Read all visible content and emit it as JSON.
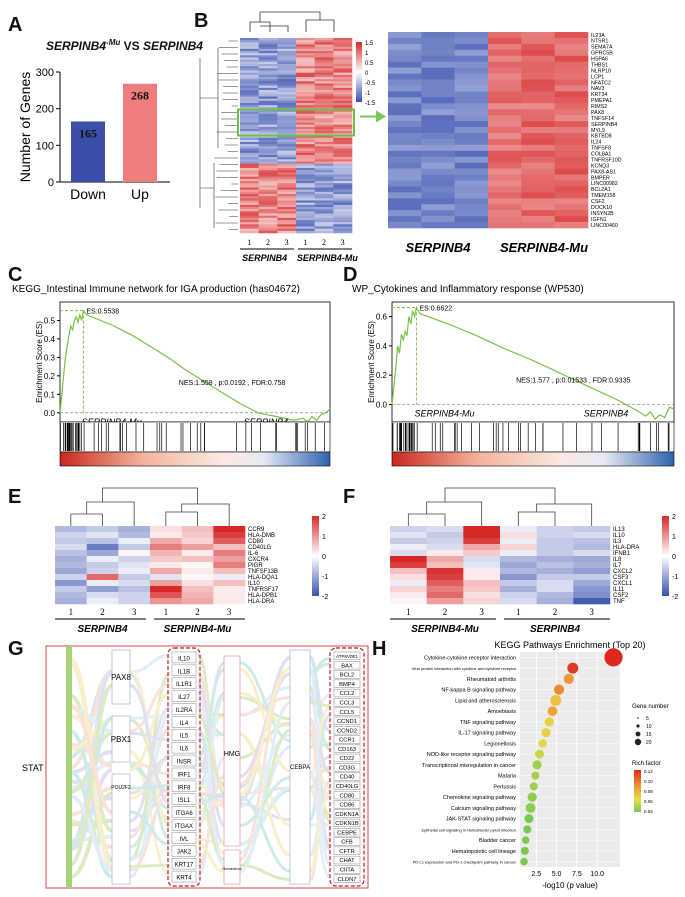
{
  "panels": {
    "A": {
      "label": "A",
      "title_left": "SERPINB4",
      "title_sup": "-Mu",
      "title_mid": " VS ",
      "title_right": "SERPINB4"
    },
    "B": {
      "label": "B"
    },
    "C": {
      "label": "C"
    },
    "D": {
      "label": "D"
    },
    "E": {
      "label": "E"
    },
    "F": {
      "label": "F"
    },
    "G": {
      "label": "G"
    },
    "H": {
      "label": "H"
    }
  },
  "chart_data": [
    {
      "id": "A",
      "type": "bar",
      "categories": [
        "Down",
        "Up"
      ],
      "values": [
        165,
        268
      ],
      "data_labels": [
        "165",
        "268"
      ],
      "ylabel": "Number of Genes",
      "ylim": [
        0,
        300
      ],
      "yticks": [
        "0",
        "100",
        "200",
        "300"
      ],
      "colors": [
        "#3a4fa8",
        "#ee7d7b"
      ]
    },
    {
      "id": "B",
      "type": "heatmap",
      "groups": [
        "SERPINB4",
        "SERPINB4-Mu"
      ],
      "sample_ticks": [
        "1",
        "2",
        "3",
        "1",
        "2",
        "3"
      ],
      "colorbar_ticks": [
        "1.5",
        "1",
        "0.5",
        "0",
        "-0.5",
        "-1",
        "-1.5"
      ],
      "zoom_genes": [
        "IL23A",
        "NTSR1",
        "SEMA7A",
        "GPRC5B",
        "HSPA6",
        "THBS1",
        "NLRP10",
        "LCP1",
        "NFATC2",
        "NAV3",
        "KRT34",
        "PMEPA1",
        "RIMS2",
        "PAX8",
        "TNFSF14",
        "SERPINB4",
        "MYL9",
        "KBTBD8",
        "IL24",
        "TNFSF8",
        "COL8A1",
        "TNFRSF10D",
        "KCNQ3",
        "PAX8-AS1",
        "BMPER",
        "LINC00982",
        "BCL2A1",
        "TMEM158",
        "CSF2",
        "DOCK10",
        "INSYN2B",
        "IGFN1",
        "LINC00460"
      ],
      "zoom_groups": [
        "SERPINB4",
        "SERPINB4-Mu"
      ]
    },
    {
      "id": "C",
      "type": "line",
      "title": "KEGG_Intestinal Immune network for IGA production (has04672)",
      "ylabel": "Enrichment Score (ES)",
      "yticks": [
        "0.0",
        "0.1",
        "0.2",
        "0.3",
        "0.4",
        "0.5"
      ],
      "ylim": [
        -0.05,
        0.6
      ],
      "es_label": "ES:0.5538",
      "stats": "NES:1.558 , p:0.0192 , FDR:0.758",
      "left_group": "SERPINB4-Mu",
      "right_group": "SERPINB4",
      "x": [
        0,
        3,
        6,
        8,
        10,
        12,
        14,
        16,
        18,
        20,
        22,
        24,
        26,
        28,
        30,
        60,
        80,
        100,
        120,
        140,
        160,
        180,
        200,
        220,
        240,
        260,
        270,
        275,
        280,
        285,
        290,
        295,
        300
      ],
      "y": [
        0,
        0.15,
        0.3,
        0.36,
        0.42,
        0.47,
        0.45,
        0.5,
        0.52,
        0.49,
        0.53,
        0.5,
        0.553,
        0.54,
        0.53,
        0.47,
        0.42,
        0.36,
        0.3,
        0.23,
        0.17,
        0.11,
        0.05,
        0.0,
        -0.02,
        -0.04,
        -0.03,
        -0.05,
        -0.02,
        -0.04,
        -0.01,
        0.0,
        0.02
      ]
    },
    {
      "id": "D",
      "type": "line",
      "title": "WP_Cytokines and Inflammatory response (WP530)",
      "ylabel": "Enrichment Score (ES)",
      "yticks": [
        "0.0",
        "0.2",
        "0.4",
        "0.6"
      ],
      "ylim": [
        -0.12,
        0.7
      ],
      "es_label": "ES:0.6622",
      "stats": "NES:1.577 , p:0.01533 , FDR:0.9335",
      "left_group": "SERPINB4-Mu",
      "right_group": "SERPINB4",
      "x": [
        0,
        4,
        6,
        8,
        10,
        12,
        14,
        16,
        18,
        20,
        22,
        24,
        26,
        28,
        30,
        60,
        90,
        120,
        150,
        180,
        210,
        240,
        260,
        270,
        275,
        280,
        285,
        290,
        295,
        300
      ],
      "y": [
        0,
        0.25,
        0.4,
        0.35,
        0.48,
        0.44,
        0.5,
        0.47,
        0.6,
        0.55,
        0.64,
        0.6,
        0.662,
        0.64,
        0.62,
        0.55,
        0.47,
        0.38,
        0.3,
        0.21,
        0.12,
        0.03,
        -0.04,
        -0.08,
        -0.05,
        -0.1,
        -0.07,
        -0.09,
        -0.02,
        -0.03
      ]
    },
    {
      "id": "E",
      "type": "heatmap",
      "genes": [
        "CCR9",
        "HLA-DMB",
        "CD80",
        "CD40LG",
        "IL-6",
        "CXCR4",
        "PIGR",
        "TNFSF13B",
        "HLA-DQA1",
        "IL10",
        "TNFRSF17",
        "HLA-DPB1",
        "HLA-DRA"
      ],
      "samples": [
        "1",
        "2",
        "3",
        "1",
        "2",
        "3"
      ],
      "groups": [
        "SERPINB4",
        "SERPINB4-Mu"
      ],
      "colorbar_ticks": [
        "2",
        "1",
        "0",
        "-1",
        "-2"
      ],
      "values": [
        [
          -0.8,
          -0.6,
          -0.9,
          0.3,
          0.6,
          2.0
        ],
        [
          -0.5,
          -0.3,
          -0.8,
          0.2,
          0.5,
          1.8
        ],
        [
          -0.6,
          -0.7,
          -0.2,
          0.8,
          0.4,
          1.5
        ],
        [
          -0.4,
          -1.5,
          -0.6,
          1.2,
          0.9,
          0.6
        ],
        [
          -0.7,
          -1.0,
          0.1,
          0.7,
          0.2,
          1.2
        ],
        [
          -0.9,
          -0.2,
          -0.5,
          0.5,
          0.6,
          0.9
        ],
        [
          -0.8,
          -0.6,
          -0.3,
          0.2,
          0.1,
          1.2
        ],
        [
          -1.0,
          -0.5,
          -0.2,
          0.8,
          0.2,
          0.6
        ],
        [
          -0.5,
          1.4,
          -0.6,
          -0.3,
          0.1,
          -0.2
        ],
        [
          -1.2,
          -0.2,
          -0.4,
          0.9,
          0.3,
          0.6
        ],
        [
          -0.6,
          -1.1,
          -0.7,
          2.0,
          0.6,
          0.2
        ],
        [
          -0.8,
          -0.4,
          -0.5,
          1.6,
          0.7,
          0.2
        ],
        [
          -0.9,
          -0.2,
          -0.5,
          1.0,
          0.8,
          0.2
        ]
      ]
    },
    {
      "id": "F",
      "type": "heatmap",
      "genes": [
        "IL13",
        "IL10",
        "IL3",
        "HLA-DRA",
        "IFNB1",
        "IL8",
        "IL7",
        "CXCL2",
        "CSF3",
        "CXCL1",
        "IL11",
        "CSF2",
        "TNF"
      ],
      "samples": [
        "1",
        "2",
        "3",
        "1",
        "2",
        "3"
      ],
      "groups": [
        "SERPINB4-Mu",
        "SERPINB4"
      ],
      "colorbar_ticks": [
        "2",
        "1",
        "0",
        "-1",
        "-2"
      ],
      "values": [
        [
          -0.5,
          -0.4,
          2.0,
          -0.2,
          -0.5,
          -0.6
        ],
        [
          -0.3,
          -0.6,
          2.0,
          0.3,
          -0.5,
          -0.4
        ],
        [
          -0.6,
          -0.5,
          1.8,
          -0.2,
          -0.6,
          -0.7
        ],
        [
          -0.2,
          -0.4,
          0.8,
          0.4,
          -0.6,
          -0.8
        ],
        [
          -0.4,
          0.2,
          0.5,
          -0.2,
          -0.6,
          -0.4
        ],
        [
          2.0,
          0.8,
          -0.4,
          -0.8,
          -0.9,
          -1.0
        ],
        [
          1.8,
          0.6,
          -0.3,
          -1.0,
          -0.7,
          -0.9
        ],
        [
          0.6,
          1.9,
          0.2,
          -0.8,
          -0.9,
          -1.1
        ],
        [
          0.3,
          1.8,
          0.2,
          -1.2,
          -0.6,
          -0.6
        ],
        [
          -0.2,
          1.5,
          0.6,
          -0.6,
          -0.4,
          -1.0
        ],
        [
          0.4,
          1.2,
          0.5,
          -0.9,
          -0.4,
          -1.2
        ],
        [
          0.2,
          1.4,
          0.3,
          -0.5,
          -0.8,
          -1.3
        ],
        [
          0.1,
          0.9,
          0.4,
          -0.4,
          -0.9,
          -1.9
        ]
      ]
    },
    {
      "id": "H",
      "type": "scatter",
      "title": "KEGG Pathways Enrichment (Top 20)",
      "xlabel": "-log10 (p value)",
      "xticks": [
        2.5,
        5.0,
        7.5,
        10.0
      ],
      "xlim": [
        0.5,
        12.8
      ],
      "categories": [
        "Cytokine-cytokine receptor interaction",
        "Viral protein interaction with cytokine and cytokine receptor",
        "Rheumatoid arthritis",
        "NF-kappa B signaling pathway",
        "Lipid and atherosclerosis",
        "Amoebiasis",
        "TNF signaling pathway",
        "IL-17 signaling pathway",
        "Legionellosis",
        "NOD-like receptor signaling pathway",
        "Transcriptional misregulation in cancer",
        "Malaria",
        "Pertussis",
        "Chemokine signaling pathway",
        "Calcium signaling pathway",
        "JAK-STAT signaling pathway",
        "Epithelial cell signaling in Helicobacter pylori infection",
        "Bladder cancer",
        "Hematopoietic cell lineage",
        "PD-L1 expression and PD-1 checkpoint pathway in cancer"
      ],
      "x": [
        12.0,
        7.0,
        6.5,
        5.3,
        4.9,
        4.5,
        4.1,
        3.7,
        3.3,
        2.9,
        2.6,
        2.4,
        2.2,
        2.0,
        1.8,
        1.6,
        1.4,
        1.2,
        1.1,
        1.0
      ],
      "gene_number": [
        90,
        25,
        20,
        20,
        25,
        18,
        15,
        15,
        12,
        14,
        15,
        10,
        10,
        15,
        18,
        14,
        10,
        8,
        10,
        8
      ],
      "rich_factor": [
        0.12,
        0.115,
        0.09,
        0.095,
        0.075,
        0.085,
        0.07,
        0.07,
        0.065,
        0.06,
        0.05,
        0.05,
        0.05,
        0.045,
        0.045,
        0.04,
        0.04,
        0.035,
        0.04,
        0.035
      ],
      "legend_size_title": "Gene number",
      "legend_size_ticks": [
        "5",
        "10",
        "15",
        "20"
      ],
      "legend_color_title": "Rich factor",
      "legend_color_ticks": [
        "0.12",
        "0.10",
        "0.08",
        "0.06",
        "0.04"
      ]
    }
  ],
  "sankey": {
    "left_node": "STAT",
    "tf_nodes": [
      "PAX8",
      "PBX1",
      "POU2F2"
    ],
    "left_genes": [
      "IL10",
      "IL1B",
      "IL1R1",
      "IL27",
      "IL2RA",
      "IL4",
      "IL5",
      "IL6",
      "INSR",
      "IRF1",
      "IRF8",
      "ISL1",
      "ITGA6",
      "ITGAX",
      "IVL",
      "JAK2",
      "KRT17",
      "KRT4"
    ],
    "mid_nodes": [
      "HMG",
      "Homeobox"
    ],
    "right_node": "CEBPA",
    "right_genes": [
      "ATP6V0E1",
      "BAX",
      "BCL2",
      "BMP4",
      "CCL2",
      "CCL3",
      "CCL5",
      "CCND1",
      "CCND2",
      "CCR1",
      "CD163",
      "CD22",
      "CD3G",
      "CD40",
      "CD40LG",
      "CD80",
      "CD86",
      "CDKN1A",
      "CDKN1B",
      "CEBPE",
      "CFB",
      "CFTR",
      "CHAT",
      "CIITA",
      "CLDN7"
    ]
  }
}
